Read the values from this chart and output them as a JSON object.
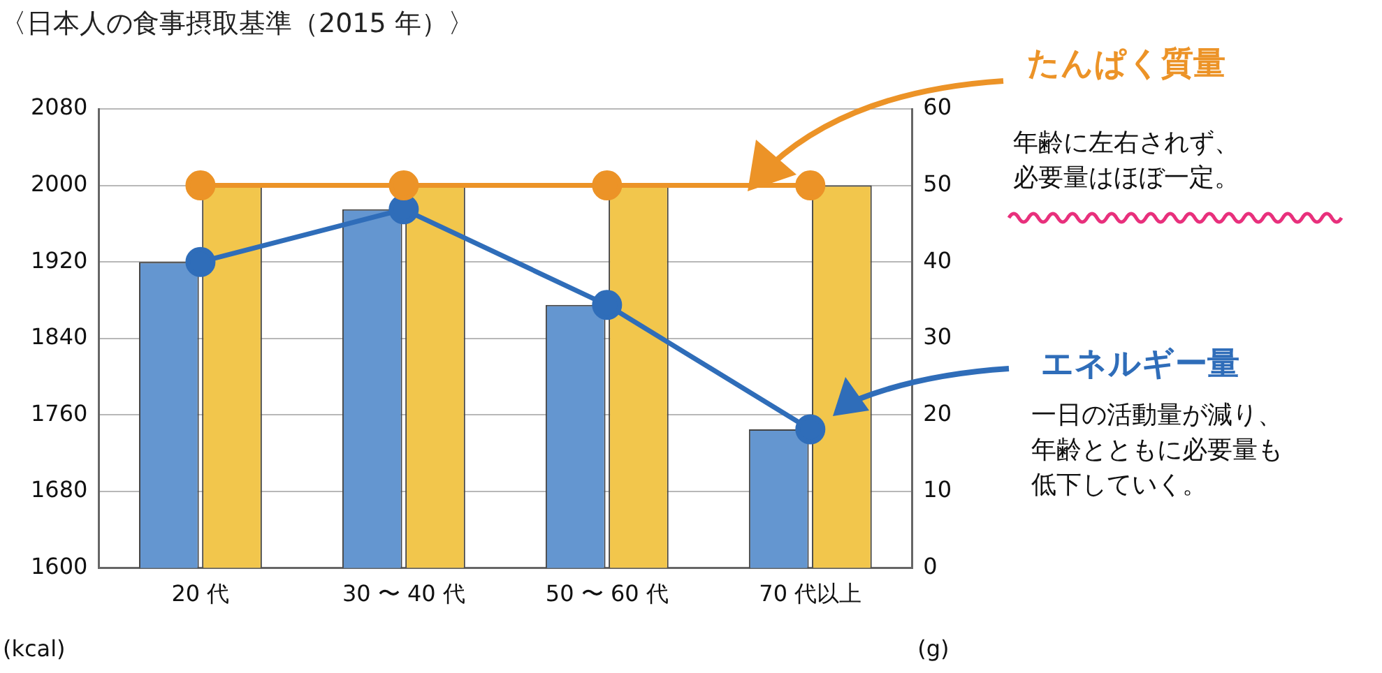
{
  "chart_data": {
    "type": "bar",
    "title": "〈日本人の食事摂取基準（2015 年）〉",
    "ylabel": "(kcal)",
    "y2label": "(g)",
    "categories": [
      "20 代",
      "30 〜 40 代",
      "50 〜 60 代",
      "70 代以上"
    ],
    "series": [
      {
        "color": "#6496d0",
        "values": [
          1920,
          1975,
          1875,
          1745
        ]
      },
      {
        "color": "#f2c64c",
        "axis": "y2",
        "values": [
          50,
          50,
          50,
          50
        ]
      },
      {
        "type": "line",
        "name": "たんぱく質量",
        "color": "#ec9327",
        "axis": "y2",
        "values": [
          50,
          50,
          50,
          50
        ]
      },
      {
        "type": "line",
        "name": "エネルギー量",
        "color": "#2f6db9",
        "values": [
          1920,
          1975,
          1875,
          1745
        ]
      }
    ],
    "ylim": [
      1600,
      2080
    ],
    "yticks": [
      1600,
      1680,
      1760,
      1840,
      1920,
      2000,
      2080
    ],
    "y2lim": [
      0,
      60
    ],
    "y2ticks": [
      0,
      10,
      20,
      30,
      40,
      50,
      60
    ],
    "grid": "y",
    "legend": "right",
    "marker": "circle",
    "line_style": "solid",
    "annotations": [
      "年齢に左右されず、必要量はほぼ一定。",
      "一日の活動量が減り、年齢とともに必要量も低下していく。"
    ]
  }
}
